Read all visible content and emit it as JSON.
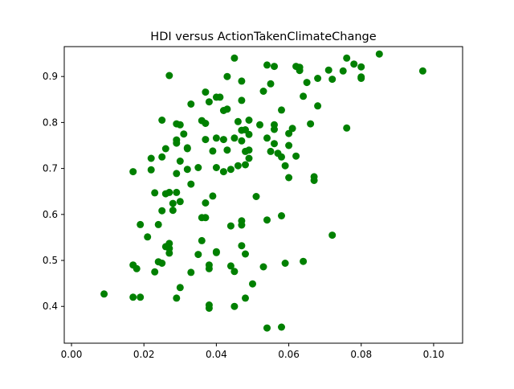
{
  "chart_data": {
    "type": "scatter",
    "title": "HDI versus ActionTakenClimateChange",
    "xlabel": "",
    "ylabel": "",
    "xlim": [
      -0.002,
      0.108
    ],
    "ylim": [
      0.32,
      0.965
    ],
    "xticks": [
      0.0,
      0.02,
      0.04,
      0.06,
      0.08,
      0.1
    ],
    "xtick_labels": [
      "0.00",
      "0.02",
      "0.04",
      "0.06",
      "0.08",
      "0.10"
    ],
    "yticks": [
      0.4,
      0.5,
      0.6,
      0.7,
      0.8,
      0.9
    ],
    "ytick_labels": [
      "0.4",
      "0.5",
      "0.6",
      "0.7",
      "0.8",
      "0.9"
    ],
    "grid": false,
    "legend": "none",
    "marker_color": "#008000",
    "points": [
      [
        0.009,
        0.427
      ],
      [
        0.017,
        0.693
      ],
      [
        0.017,
        0.49
      ],
      [
        0.018,
        0.482
      ],
      [
        0.017,
        0.42
      ],
      [
        0.019,
        0.42
      ],
      [
        0.019,
        0.578
      ],
      [
        0.021,
        0.551
      ],
      [
        0.022,
        0.722
      ],
      [
        0.022,
        0.697
      ],
      [
        0.023,
        0.475
      ],
      [
        0.023,
        0.647
      ],
      [
        0.024,
        0.497
      ],
      [
        0.024,
        0.578
      ],
      [
        0.025,
        0.805
      ],
      [
        0.025,
        0.725
      ],
      [
        0.025,
        0.608
      ],
      [
        0.025,
        0.494
      ],
      [
        0.026,
        0.743
      ],
      [
        0.026,
        0.645
      ],
      [
        0.026,
        0.53
      ],
      [
        0.027,
        0.648
      ],
      [
        0.027,
        0.902
      ],
      [
        0.027,
        0.526
      ],
      [
        0.027,
        0.516
      ],
      [
        0.027,
        0.537
      ],
      [
        0.028,
        0.609
      ],
      [
        0.028,
        0.624
      ],
      [
        0.029,
        0.648
      ],
      [
        0.029,
        0.797
      ],
      [
        0.029,
        0.762
      ],
      [
        0.029,
        0.755
      ],
      [
        0.029,
        0.689
      ],
      [
        0.029,
        0.418
      ],
      [
        0.03,
        0.441
      ],
      [
        0.03,
        0.795
      ],
      [
        0.03,
        0.716
      ],
      [
        0.03,
        0.628
      ],
      [
        0.031,
        0.775
      ],
      [
        0.032,
        0.745
      ],
      [
        0.032,
        0.743
      ],
      [
        0.032,
        0.698
      ],
      [
        0.033,
        0.666
      ],
      [
        0.033,
        0.474
      ],
      [
        0.033,
        0.84
      ],
      [
        0.035,
        0.702
      ],
      [
        0.035,
        0.513
      ],
      [
        0.036,
        0.804
      ],
      [
        0.036,
        0.593
      ],
      [
        0.036,
        0.543
      ],
      [
        0.037,
        0.866
      ],
      [
        0.037,
        0.798
      ],
      [
        0.037,
        0.763
      ],
      [
        0.037,
        0.625
      ],
      [
        0.037,
        0.593
      ],
      [
        0.038,
        0.49
      ],
      [
        0.038,
        0.396
      ],
      [
        0.038,
        0.403
      ],
      [
        0.038,
        0.482
      ],
      [
        0.038,
        0.845
      ],
      [
        0.039,
        0.738
      ],
      [
        0.039,
        0.64
      ],
      [
        0.04,
        0.855
      ],
      [
        0.04,
        0.766
      ],
      [
        0.04,
        0.702
      ],
      [
        0.04,
        0.517
      ],
      [
        0.04,
        0.519
      ],
      [
        0.041,
        0.855
      ],
      [
        0.042,
        0.763
      ],
      [
        0.042,
        0.826
      ],
      [
        0.042,
        0.693
      ],
      [
        0.043,
        0.829
      ],
      [
        0.043,
        0.9
      ],
      [
        0.043,
        0.74
      ],
      [
        0.044,
        0.698
      ],
      [
        0.044,
        0.488
      ],
      [
        0.044,
        0.575
      ],
      [
        0.045,
        0.476
      ],
      [
        0.045,
        0.4
      ],
      [
        0.045,
        0.94
      ],
      [
        0.045,
        0.766
      ],
      [
        0.046,
        0.802
      ],
      [
        0.046,
        0.706
      ],
      [
        0.047,
        0.89
      ],
      [
        0.047,
        0.76
      ],
      [
        0.047,
        0.848
      ],
      [
        0.047,
        0.783
      ],
      [
        0.047,
        0.586
      ],
      [
        0.047,
        0.577
      ],
      [
        0.047,
        0.532
      ],
      [
        0.048,
        0.784
      ],
      [
        0.048,
        0.737
      ],
      [
        0.048,
        0.708
      ],
      [
        0.048,
        0.514
      ],
      [
        0.048,
        0.418
      ],
      [
        0.049,
        0.805
      ],
      [
        0.049,
        0.774
      ],
      [
        0.049,
        0.74
      ],
      [
        0.049,
        0.722
      ],
      [
        0.05,
        0.449
      ],
      [
        0.051,
        0.639
      ],
      [
        0.052,
        0.795
      ],
      [
        0.053,
        0.868
      ],
      [
        0.053,
        0.486
      ],
      [
        0.054,
        0.925
      ],
      [
        0.054,
        0.766
      ],
      [
        0.054,
        0.588
      ],
      [
        0.054,
        0.353
      ],
      [
        0.055,
        0.884
      ],
      [
        0.055,
        0.737
      ],
      [
        0.056,
        0.922
      ],
      [
        0.056,
        0.795
      ],
      [
        0.056,
        0.754
      ],
      [
        0.056,
        0.785
      ],
      [
        0.057,
        0.733
      ],
      [
        0.058,
        0.725
      ],
      [
        0.058,
        0.597
      ],
      [
        0.058,
        0.355
      ],
      [
        0.058,
        0.827
      ],
      [
        0.059,
        0.706
      ],
      [
        0.059,
        0.494
      ],
      [
        0.06,
        0.75
      ],
      [
        0.06,
        0.68
      ],
      [
        0.06,
        0.776
      ],
      [
        0.061,
        0.787
      ],
      [
        0.062,
        0.922
      ],
      [
        0.062,
        0.727
      ],
      [
        0.063,
        0.913
      ],
      [
        0.063,
        0.92
      ],
      [
        0.064,
        0.498
      ],
      [
        0.064,
        0.857
      ],
      [
        0.065,
        0.887
      ],
      [
        0.066,
        0.797
      ],
      [
        0.067,
        0.682
      ],
      [
        0.067,
        0.674
      ],
      [
        0.068,
        0.896
      ],
      [
        0.068,
        0.836
      ],
      [
        0.071,
        0.914
      ],
      [
        0.072,
        0.894
      ],
      [
        0.072,
        0.555
      ],
      [
        0.075,
        0.912
      ],
      [
        0.076,
        0.94
      ],
      [
        0.076,
        0.788
      ],
      [
        0.078,
        0.927
      ],
      [
        0.08,
        0.899
      ],
      [
        0.08,
        0.921
      ],
      [
        0.08,
        0.896
      ],
      [
        0.085,
        0.949
      ],
      [
        0.097,
        0.912
      ]
    ]
  }
}
